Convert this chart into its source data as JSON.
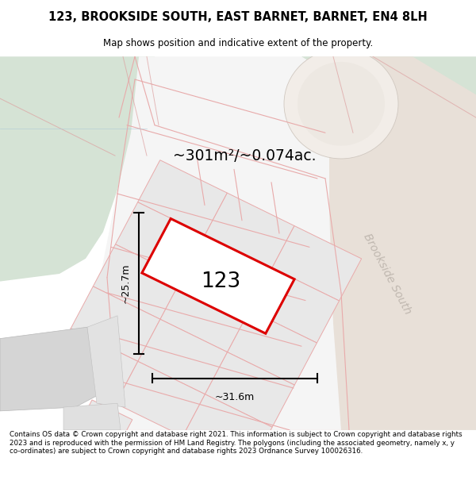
{
  "title_line1": "123, BROOKSIDE SOUTH, EAST BARNET, BARNET, EN4 8LH",
  "title_line2": "Map shows position and indicative extent of the property.",
  "footer_text": "Contains OS data © Crown copyright and database right 2021. This information is subject to Crown copyright and database rights 2023 and is reproduced with the permission of HM Land Registry. The polygons (including the associated geometry, namely x, y co-ordinates) are subject to Crown copyright and database rights 2023 Ordnance Survey 100026316.",
  "area_label": "~301m²/~0.074ac.",
  "plot_number": "123",
  "width_label": "~31.6m",
  "height_label": "~25.7m",
  "road_label": "Brookside South",
  "bg_map_color": "#eaeceb",
  "green_area_color": "#d5e3d5",
  "plot_outline_color": "#dd0000",
  "grid_line_color": "#e8aaaa",
  "parcel_fill": "#eaeaea",
  "road_fill": "#e8e0d8",
  "building_fill": "#d8d8d8",
  "white_fill": "#f8f8f8"
}
